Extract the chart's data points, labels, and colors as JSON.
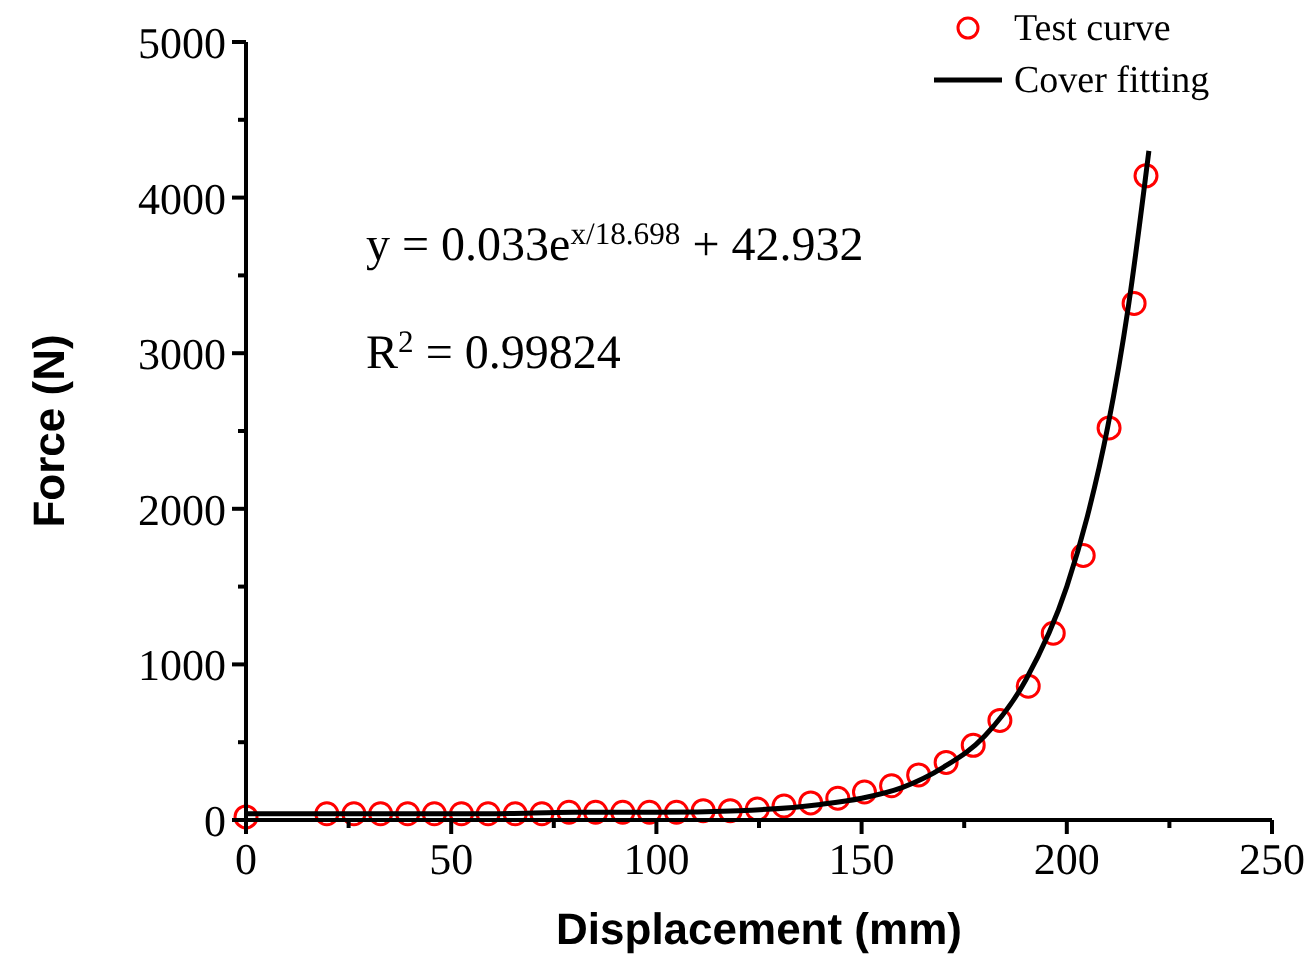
{
  "chart_data": {
    "type": "scatter",
    "xlabel": "Displacement (mm)",
    "ylabel": "Force (N)",
    "xlim": [
      0,
      250
    ],
    "ylim": [
      0,
      5000
    ],
    "xticks": [
      0,
      {
        "value": 25,
        "label": null
      },
      50,
      {
        "value": 75,
        "label": null
      },
      100,
      {
        "value": 125,
        "label": null
      },
      150,
      {
        "value": 175,
        "label": null
      },
      200,
      {
        "value": 225,
        "label": null
      },
      250
    ],
    "yticks": [
      0,
      {
        "value": 500,
        "label": null
      },
      1000,
      {
        "value": 1500,
        "label": null
      },
      2000,
      {
        "value": 2500,
        "label": null
      },
      3000,
      {
        "value": 3500,
        "label": null
      },
      4000,
      {
        "value": 4500,
        "label": null
      },
      5000
    ],
    "grid": false,
    "legend": "top right",
    "series": [
      {
        "name": "Test curve",
        "marker": "circle",
        "color": "#ff0000",
        "x": [
          0,
          19.7,
          26.3,
          32.8,
          39.4,
          45.9,
          52.5,
          59.0,
          65.6,
          72.1,
          78.7,
          85.2,
          91.8,
          98.3,
          104.9,
          111.4,
          118.0,
          124.6,
          131.1,
          137.6,
          144.2,
          150.7,
          157.3,
          163.9,
          170.6,
          177.2,
          183.7,
          190.6,
          196.7,
          204.0,
          210.3,
          216.4,
          219.3
        ],
        "values": [
          20,
          40,
          40,
          40,
          40,
          40,
          40,
          40,
          40,
          40,
          50,
          50,
          50,
          50,
          50,
          60,
          60,
          70,
          90,
          110,
          140,
          180,
          220,
          290,
          370,
          480,
          640,
          860,
          1200,
          1700,
          2520,
          3320,
          4140
        ]
      },
      {
        "name": "Cover fitting",
        "type": "line",
        "line_style": "solid",
        "color": "#000000",
        "x": [
          0,
          20,
          40,
          60,
          80,
          100,
          120,
          140,
          150,
          160,
          170,
          180,
          190,
          200,
          205,
          210,
          215,
          220
        ],
        "values": [
          40,
          40,
          40,
          40,
          50,
          50,
          60,
          100,
          140,
          210,
          340,
          540,
          900,
          1500,
          1950,
          2530,
          3300,
          4300
        ]
      }
    ],
    "annotations": [
      {
        "text": "y = 0.033e$^{x/18.698}$ + 42.932"
      },
      {
        "text": "R$^{2}$ = 0.99824"
      }
    ]
  }
}
